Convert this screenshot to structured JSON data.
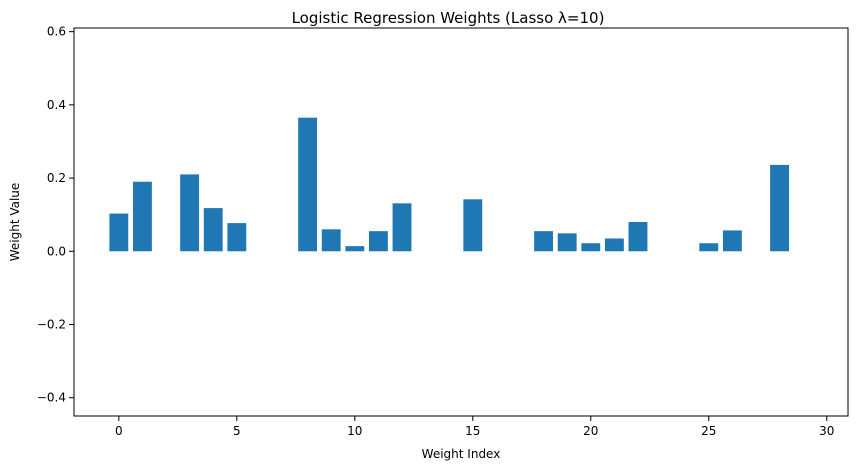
{
  "chart_data": {
    "type": "bar",
    "title": "Logistic Regression Weights (Lasso λ=10)",
    "xlabel": "Weight Index",
    "ylabel": "Weight Value",
    "xlim": [
      -1.9,
      30.9
    ],
    "ylim": [
      -0.45,
      0.61
    ],
    "xticks": [
      0,
      5,
      10,
      15,
      20,
      25,
      30
    ],
    "yticks": [
      -0.4,
      -0.2,
      0.0,
      0.2,
      0.4,
      0.6
    ],
    "ytick_labels": [
      "−0.4",
      "−0.2",
      "0.0",
      "0.2",
      "0.4",
      "0.6"
    ],
    "bar_color": "#1f77b4",
    "grid": false,
    "x": [
      0,
      1,
      2,
      3,
      4,
      5,
      6,
      7,
      8,
      9,
      10,
      11,
      12,
      13,
      14,
      15,
      16,
      17,
      18,
      19,
      20,
      21,
      22,
      23,
      24,
      25,
      26,
      27,
      28,
      29,
      30
    ],
    "values": [
      0.103,
      0.19,
      0.0,
      0.21,
      0.118,
      0.077,
      0.0,
      0.0,
      0.365,
      0.06,
      0.014,
      0.055,
      0.131,
      0.0,
      0.0,
      0.142,
      0.0,
      0.0,
      0.055,
      0.049,
      0.022,
      0.035,
      0.08,
      0.0,
      0.0,
      0.022,
      0.057,
      0.0,
      0.236,
      0.0,
      0.0
    ]
  }
}
